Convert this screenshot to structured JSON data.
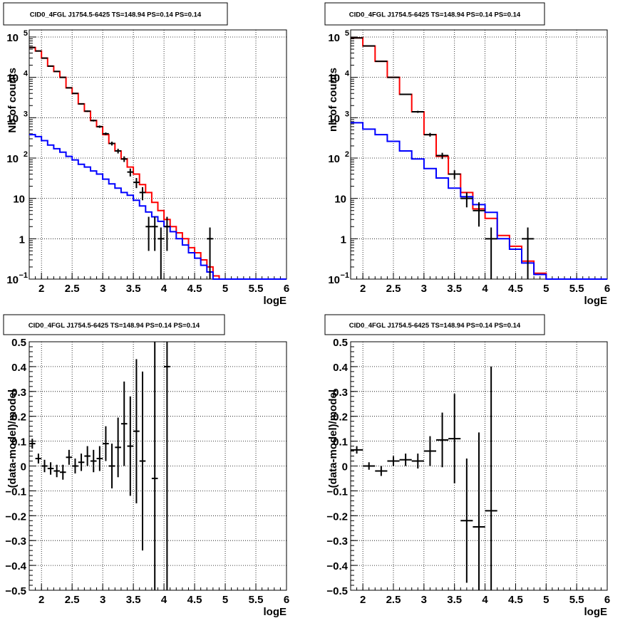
{
  "chart_data": [
    {
      "type": "line",
      "title": "CID0_4FGL J1754.5-6425 TS=148.94 PS=0.14 PS=0.14",
      "xlabel": "logE",
      "ylabel": "Nb of counts",
      "xlim": [
        1.8,
        6.0
      ],
      "ylim": [
        0.1,
        150000
      ],
      "yscale": "log",
      "grid": true,
      "x_ticks": [
        "2",
        "2.5",
        "3",
        "3.5",
        "4",
        "4.5",
        "5",
        "5.5",
        "6"
      ],
      "y_ticks": [
        {
          "v": 0.1,
          "base": "10",
          "sup": "−1"
        },
        {
          "v": 1,
          "base": "1",
          "sup": ""
        },
        {
          "v": 10,
          "base": "10",
          "sup": ""
        },
        {
          "v": 100,
          "base": "10",
          "sup": "2"
        },
        {
          "v": 1000,
          "base": "10",
          "sup": "3"
        },
        {
          "v": 10000,
          "base": "10",
          "sup": "4"
        },
        {
          "v": 100000,
          "base": "10",
          "sup": "5"
        }
      ],
      "bin_width": 0.1,
      "series": [
        {
          "role": "total model",
          "color": "#ff0000",
          "x": [
            1.8,
            1.9,
            2.0,
            2.1,
            2.2,
            2.3,
            2.4,
            2.5,
            2.6,
            2.7,
            2.8,
            2.9,
            3.0,
            3.1,
            3.2,
            3.3,
            3.4,
            3.5,
            3.6,
            3.7,
            3.8,
            3.9,
            4.0,
            4.1,
            4.2,
            4.3,
            4.4,
            4.5,
            4.6,
            4.7,
            4.8,
            4.9,
            5.0,
            5.1,
            5.2,
            5.3,
            5.4,
            5.5,
            5.6,
            5.7,
            5.8,
            5.9
          ],
          "values": [
            55000,
            45000,
            30000,
            19000,
            14000,
            10000,
            5500,
            4000,
            2200,
            1450,
            850,
            600,
            380,
            230,
            150,
            95,
            60,
            40,
            22,
            14,
            8,
            5,
            3,
            2,
            1.4,
            1,
            0.6,
            0.45,
            0.3,
            0.2,
            0.12,
            0.1,
            0.1,
            0.1,
            0.1,
            0.1,
            0.1,
            0.1,
            0.1,
            0.1,
            0.1,
            0.1
          ]
        },
        {
          "role": "source model",
          "color": "#0000ff",
          "x": [
            1.8,
            1.9,
            2.0,
            2.1,
            2.2,
            2.3,
            2.4,
            2.5,
            2.6,
            2.7,
            2.8,
            2.9,
            3.0,
            3.1,
            3.2,
            3.3,
            3.4,
            3.5,
            3.6,
            3.7,
            3.8,
            3.9,
            4.0,
            4.1,
            4.2,
            4.3,
            4.4,
            4.5,
            4.6,
            4.7,
            4.8,
            4.9,
            5.0,
            5.1,
            5.2,
            5.3,
            5.4,
            5.5,
            5.6,
            5.7,
            5.8,
            5.9
          ],
          "values": [
            380,
            340,
            270,
            210,
            170,
            140,
            110,
            90,
            70,
            60,
            48,
            40,
            30,
            23,
            18,
            14,
            12,
            9,
            6.5,
            4.6,
            3.5,
            2.7,
            2.0,
            1.5,
            1.0,
            0.7,
            0.45,
            0.33,
            0.22,
            0.15,
            0.1,
            0.1,
            0.1,
            0.1,
            0.1,
            0.1,
            0.1,
            0.1,
            0.1,
            0.1,
            0.1,
            0.1
          ]
        }
      ],
      "data_points": [
        {
          "x": 1.85,
          "y": 55000,
          "e": 600
        },
        {
          "x": 1.95,
          "y": 45000,
          "e": 500
        },
        {
          "x": 2.05,
          "y": 30000,
          "e": 400
        },
        {
          "x": 2.15,
          "y": 19000,
          "e": 300
        },
        {
          "x": 2.25,
          "y": 14000,
          "e": 250
        },
        {
          "x": 2.35,
          "y": 10000,
          "e": 200
        },
        {
          "x": 2.45,
          "y": 5500,
          "e": 150
        },
        {
          "x": 2.55,
          "y": 4000,
          "e": 120
        },
        {
          "x": 2.65,
          "y": 2200,
          "e": 80
        },
        {
          "x": 2.75,
          "y": 1450,
          "e": 60
        },
        {
          "x": 2.85,
          "y": 850,
          "e": 45
        },
        {
          "x": 2.95,
          "y": 600,
          "e": 40
        },
        {
          "x": 3.05,
          "y": 400,
          "e": 30
        },
        {
          "x": 3.15,
          "y": 230,
          "e": 25
        },
        {
          "x": 3.25,
          "y": 150,
          "e": 20
        },
        {
          "x": 3.35,
          "y": 95,
          "e": 15
        },
        {
          "x": 3.45,
          "y": 45,
          "e": 10
        },
        {
          "x": 3.55,
          "y": 25,
          "e": 7
        },
        {
          "x": 3.65,
          "y": 14,
          "e": 5
        },
        {
          "x": 3.75,
          "y": 2,
          "e": 1.5
        },
        {
          "x": 3.85,
          "y": 2,
          "e": 1.5
        },
        {
          "x": 3.95,
          "y": 1,
          "e": 0.9
        },
        {
          "x": 4.05,
          "y": 2,
          "e": 1.5
        },
        {
          "x": 4.75,
          "y": 1,
          "e": 0.9
        }
      ]
    },
    {
      "type": "line",
      "title": "CID0_4FGL J1754.5-6425 TS=148.94 PS=0.14 PS=0.14",
      "xlabel": "logE",
      "ylabel": "nb of counts",
      "xlim": [
        1.8,
        6.0
      ],
      "ylim": [
        0.1,
        150000
      ],
      "yscale": "log",
      "grid": true,
      "x_ticks": [
        "2",
        "2.5",
        "3",
        "3.5",
        "4",
        "4.5",
        "5",
        "5.5",
        "6"
      ],
      "y_ticks": [
        {
          "v": 0.1,
          "base": "10",
          "sup": "−1"
        },
        {
          "v": 1,
          "base": "1",
          "sup": ""
        },
        {
          "v": 10,
          "base": "10",
          "sup": ""
        },
        {
          "v": 100,
          "base": "10",
          "sup": "2"
        },
        {
          "v": 1000,
          "base": "10",
          "sup": "3"
        },
        {
          "v": 10000,
          "base": "10",
          "sup": "4"
        },
        {
          "v": 100000,
          "base": "10",
          "sup": "5"
        }
      ],
      "bin_width": 0.2,
      "series": [
        {
          "role": "total model",
          "color": "#ff0000",
          "x": [
            1.8,
            2.0,
            2.2,
            2.4,
            2.6,
            2.8,
            3.0,
            3.2,
            3.4,
            3.6,
            3.8,
            4.0,
            4.2,
            4.4,
            4.6,
            4.8,
            5.0,
            5.2,
            5.4,
            5.6,
            5.8
          ],
          "values": [
            95000,
            60000,
            25000,
            10000,
            3800,
            1400,
            380,
            110,
            40,
            14,
            5.5,
            3.2,
            1.2,
            0.65,
            0.28,
            0.14,
            0.1,
            0.1,
            0.1,
            0.1,
            0.1
          ]
        },
        {
          "role": "source model",
          "color": "#0000ff",
          "x": [
            1.8,
            2.0,
            2.2,
            2.4,
            2.6,
            2.8,
            3.0,
            3.2,
            3.4,
            3.6,
            3.8,
            4.0,
            4.2,
            4.4,
            4.6,
            4.8,
            5.0,
            5.2,
            5.4,
            5.6,
            5.8
          ],
          "values": [
            750,
            520,
            380,
            260,
            150,
            95,
            55,
            32,
            18,
            11,
            7,
            4.5,
            1.0,
            0.55,
            0.25,
            0.13,
            0.1,
            0.1,
            0.1,
            0.1,
            0.1
          ]
        }
      ],
      "data_points": [
        {
          "x": 1.9,
          "y": 95000,
          "e": 800
        },
        {
          "x": 2.1,
          "y": 60000,
          "e": 600
        },
        {
          "x": 2.3,
          "y": 25000,
          "e": 400
        },
        {
          "x": 2.5,
          "y": 10000,
          "e": 250
        },
        {
          "x": 2.7,
          "y": 3800,
          "e": 150
        },
        {
          "x": 2.9,
          "y": 1400,
          "e": 80
        },
        {
          "x": 3.1,
          "y": 380,
          "e": 40
        },
        {
          "x": 3.3,
          "y": 115,
          "e": 20
        },
        {
          "x": 3.5,
          "y": 40,
          "e": 10
        },
        {
          "x": 3.7,
          "y": 10,
          "e": 4
        },
        {
          "x": 3.9,
          "y": 5,
          "e": 3
        },
        {
          "x": 4.1,
          "y": 1,
          "e": 0.9
        },
        {
          "x": 4.7,
          "y": 1,
          "e": 0.9
        }
      ]
    },
    {
      "type": "scatter",
      "title": "CID0_4FGL J1754.5-6425 TS=148.94 PS=0.14 PS=0.14",
      "xlabel": "logE",
      "ylabel": "(data-model)/model",
      "xlim": [
        1.8,
        6.0
      ],
      "ylim": [
        -0.5,
        0.5
      ],
      "grid": true,
      "x_ticks": [
        "2",
        "2.5",
        "3",
        "3.5",
        "4",
        "4.5",
        "5",
        "5.5",
        "6"
      ],
      "y_ticks": [
        "−0.5",
        "−0.4",
        "−0.3",
        "−0.2",
        "−0.1",
        "0",
        "0.1",
        "0.2",
        "0.3",
        "0.4",
        "0.5"
      ],
      "bin_width": 0.1,
      "points": [
        {
          "x": 1.85,
          "y": 0.09,
          "e": 0.02
        },
        {
          "x": 1.95,
          "y": 0.03,
          "e": 0.02
        },
        {
          "x": 2.05,
          "y": 0.0,
          "e": 0.025
        },
        {
          "x": 2.15,
          "y": -0.01,
          "e": 0.025
        },
        {
          "x": 2.25,
          "y": -0.02,
          "e": 0.025
        },
        {
          "x": 2.35,
          "y": -0.025,
          "e": 0.03
        },
        {
          "x": 2.45,
          "y": 0.035,
          "e": 0.03
        },
        {
          "x": 2.55,
          "y": 0.0,
          "e": 0.03
        },
        {
          "x": 2.65,
          "y": 0.015,
          "e": 0.035
        },
        {
          "x": 2.75,
          "y": 0.04,
          "e": 0.04
        },
        {
          "x": 2.85,
          "y": 0.02,
          "e": 0.045
        },
        {
          "x": 2.95,
          "y": 0.03,
          "e": 0.05
        },
        {
          "x": 3.05,
          "y": 0.09,
          "e": 0.07
        },
        {
          "x": 3.15,
          "y": 0.0,
          "e": 0.09
        },
        {
          "x": 3.25,
          "y": 0.075,
          "e": 0.12
        },
        {
          "x": 3.35,
          "y": 0.17,
          "e": 0.17
        },
        {
          "x": 3.45,
          "y": 0.08,
          "e": 0.2
        },
        {
          "x": 3.55,
          "y": 0.14,
          "e": 0.29
        },
        {
          "x": 3.65,
          "y": 0.02,
          "e": 0.36
        },
        {
          "x": 3.85,
          "y": -0.05,
          "e": 0.7
        },
        {
          "x": 4.05,
          "y": 0.4,
          "e": 1.0
        }
      ]
    },
    {
      "type": "scatter",
      "title": "CID0_4FGL J1754.5-6425 TS=148.94 PS=0.14 PS=0.14",
      "xlabel": "logE",
      "ylabel": "(data-model)/model",
      "xlim": [
        1.8,
        6.0
      ],
      "ylim": [
        -0.5,
        0.5
      ],
      "grid": true,
      "x_ticks": [
        "2",
        "2.5",
        "3",
        "3.5",
        "4",
        "4.5",
        "5",
        "5.5",
        "6"
      ],
      "y_ticks": [
        "−0.5",
        "−0.4",
        "−0.3",
        "−0.2",
        "−0.1",
        "0",
        "0.1",
        "0.2",
        "0.3",
        "0.4",
        "0.5"
      ],
      "bin_width": 0.2,
      "points": [
        {
          "x": 1.9,
          "y": 0.065,
          "e": 0.015
        },
        {
          "x": 2.1,
          "y": 0.0,
          "e": 0.015
        },
        {
          "x": 2.3,
          "y": -0.02,
          "e": 0.02
        },
        {
          "x": 2.5,
          "y": 0.02,
          "e": 0.02
        },
        {
          "x": 2.7,
          "y": 0.025,
          "e": 0.025
        },
        {
          "x": 2.9,
          "y": 0.02,
          "e": 0.03
        },
        {
          "x": 3.1,
          "y": 0.06,
          "e": 0.06
        },
        {
          "x": 3.3,
          "y": 0.105,
          "e": 0.11
        },
        {
          "x": 3.5,
          "y": 0.11,
          "e": 0.18
        },
        {
          "x": 3.7,
          "y": -0.22,
          "e": 0.25
        },
        {
          "x": 3.9,
          "y": -0.245,
          "e": 0.38
        },
        {
          "x": 4.1,
          "y": -0.18,
          "e": 0.58
        }
      ]
    }
  ]
}
